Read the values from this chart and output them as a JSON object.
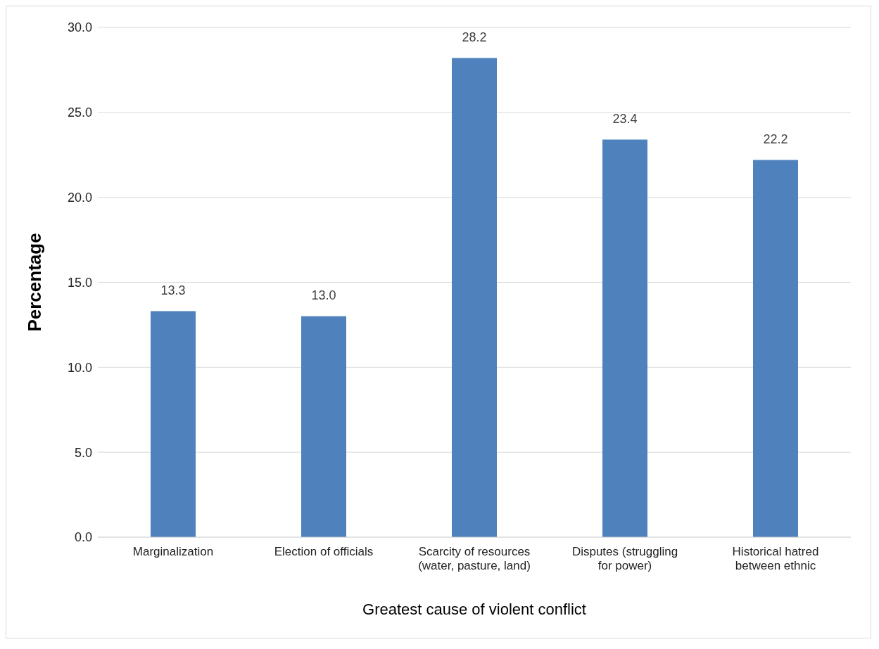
{
  "chart_data": {
    "type": "bar",
    "xlabel": "Greatest cause of violent conflict",
    "ylabel": "Percentage",
    "categories": [
      "Marginalization",
      "Election of officials",
      "Scarcity of resources (water, pasture, land)",
      "Disputes (struggling for power)",
      "Historical hatred between ethnic"
    ],
    "values": [
      13.3,
      13.0,
      28.2,
      23.4,
      22.2
    ],
    "color": "#4f81bd",
    "value_labels": [
      "13.3",
      "13.0",
      "28.2",
      "23.4",
      "22.2"
    ],
    "ylim": [
      0,
      30
    ],
    "yticks": [
      {
        "value": 0,
        "label": "0.0"
      },
      {
        "value": 5,
        "label": "5.0"
      },
      {
        "value": 10,
        "label": "10.0"
      },
      {
        "value": 15,
        "label": "15.0"
      },
      {
        "value": 20,
        "label": "20.0"
      },
      {
        "value": 25,
        "label": "25.0"
      },
      {
        "value": 30,
        "label": "30.0"
      }
    ],
    "grid": "y",
    "legend": false
  }
}
